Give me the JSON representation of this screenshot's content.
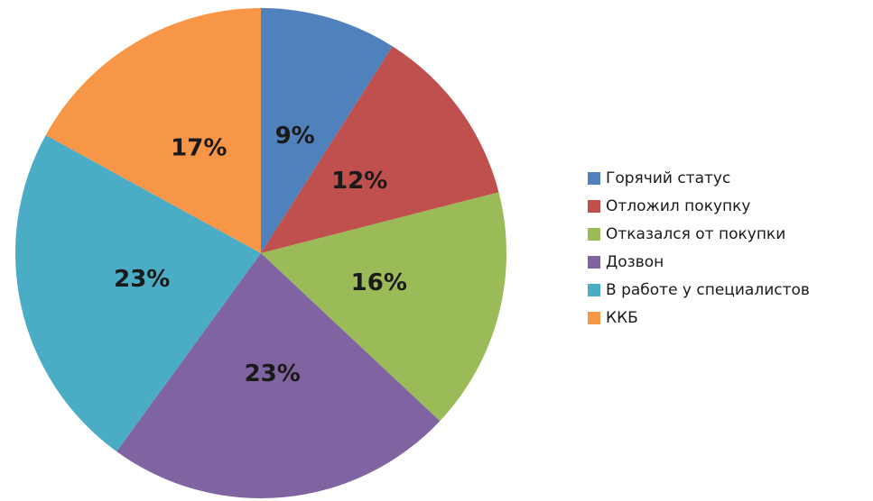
{
  "chart_data": {
    "type": "pie",
    "categories": [
      "Горячий статус",
      "Отложил покупку",
      "Отказался от покупки",
      "Дозвон",
      "В работе у специалистов",
      "ККБ"
    ],
    "values": [
      9,
      12,
      16,
      23,
      23,
      17
    ],
    "value_labels": [
      "9%",
      "12%",
      "16%",
      "23%",
      "23%",
      "17%"
    ],
    "colors": [
      "#4f81bd",
      "#c0504d",
      "#9bbb59",
      "#8064a2",
      "#4bacc6",
      "#f79646"
    ],
    "legend": "right"
  }
}
